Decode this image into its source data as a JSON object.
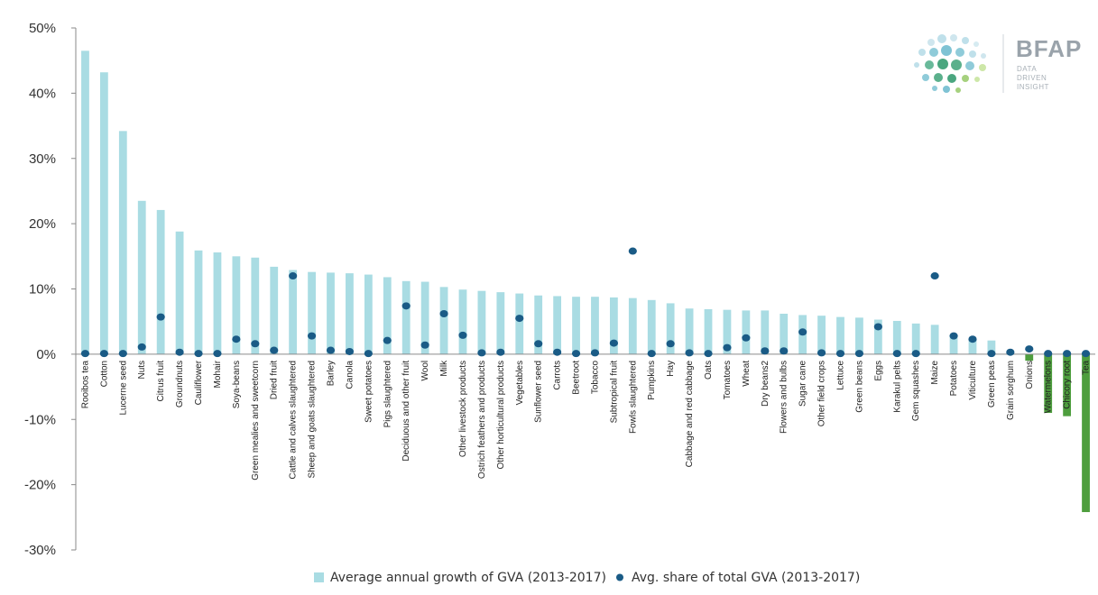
{
  "logo": {
    "name": "BFAP",
    "tagline": [
      "DATA",
      "DRIVEN",
      "INSIGHT"
    ]
  },
  "chart_data": {
    "type": "bar",
    "ylim": [
      -30,
      50
    ],
    "yticks": [
      50,
      40,
      30,
      20,
      10,
      0,
      -10,
      -20,
      -30
    ],
    "ytick_labels": [
      "50%",
      "40%",
      "30%",
      "20%",
      "10%",
      "0%",
      "-10%",
      "-20%",
      "-30%"
    ],
    "grid": false,
    "legend_position": "bottom",
    "colors": {
      "bar_positive": "#a9dce3",
      "bar_negative": "#4e9e3e",
      "dot": "#1a5b86"
    },
    "categories": [
      "Rooibos tea",
      "Cotton",
      "Lucerne seed",
      "Nuts",
      "Citrus fruit",
      "Groundnuts",
      "Cauliflower",
      "Mohair",
      "Soya-beans",
      "Green mealies and sweetcorn",
      "Dried fruit",
      "Cattle and calves slaughtered",
      "Sheep and goats slaughtered",
      "Barley",
      "Canola",
      "Sweet potatoes",
      "Pigs slaughtered",
      "Deciduous and other fruit",
      "Wool",
      "Milk",
      "Other livestock products",
      "Ostrich feathers and products",
      "Other horticultural products",
      "Vegetables",
      "Sunflower seed",
      "Carrots",
      "Beetroot",
      "Tobacco",
      "Subtropical fruit",
      "Fowls slaughtered",
      "Pumpkins",
      "Hay",
      "Cabbage and red cabbage",
      "Oats",
      "Tomatoes",
      "Wheat",
      "Dry beans2",
      "Flowers and bulbs",
      "Sugar cane",
      "Other field crops",
      "Lettuce",
      "Green beans",
      "Eggs",
      "Karakul pelts",
      "Gem squashes",
      "Maize",
      "Potatoes",
      "Viticulture",
      "Green peas",
      "Grain sorghum",
      "Onions",
      "Watermelons",
      "Chicory root",
      "Tea"
    ],
    "series": [
      {
        "name": "Average annual growth of GVA (2013-2017)",
        "type": "bar",
        "values": [
          46.5,
          43.2,
          34.2,
          23.5,
          22.1,
          18.8,
          15.9,
          15.6,
          15.0,
          14.8,
          13.4,
          12.9,
          12.6,
          12.5,
          12.4,
          12.2,
          11.8,
          11.2,
          11.1,
          10.3,
          9.9,
          9.7,
          9.5,
          9.3,
          9.0,
          8.9,
          8.8,
          8.8,
          8.7,
          8.6,
          8.3,
          7.8,
          7.0,
          6.9,
          6.8,
          6.7,
          6.7,
          6.2,
          6.0,
          5.9,
          5.7,
          5.6,
          5.3,
          5.1,
          4.7,
          4.5,
          2.9,
          2.2,
          2.1,
          0.0,
          -1.0,
          -9.0,
          -9.5,
          -24.2
        ]
      },
      {
        "name": "Avg. share of total GVA (2013-2017)",
        "type": "scatter",
        "values": [
          0.1,
          0.1,
          0.1,
          1.1,
          5.7,
          0.3,
          0.1,
          0.1,
          2.3,
          1.6,
          0.6,
          12.0,
          2.8,
          0.6,
          0.4,
          0.1,
          2.1,
          7.4,
          1.4,
          6.2,
          2.9,
          0.2,
          0.3,
          5.5,
          1.6,
          0.3,
          0.1,
          0.2,
          1.7,
          15.8,
          0.1,
          1.6,
          0.2,
          0.1,
          1.0,
          2.5,
          0.5,
          0.5,
          3.4,
          0.2,
          0.1,
          0.1,
          4.2,
          0.1,
          0.1,
          12.0,
          2.8,
          2.3,
          0.1,
          0.3,
          0.8,
          0.1,
          0.1,
          0.1
        ]
      }
    ]
  }
}
